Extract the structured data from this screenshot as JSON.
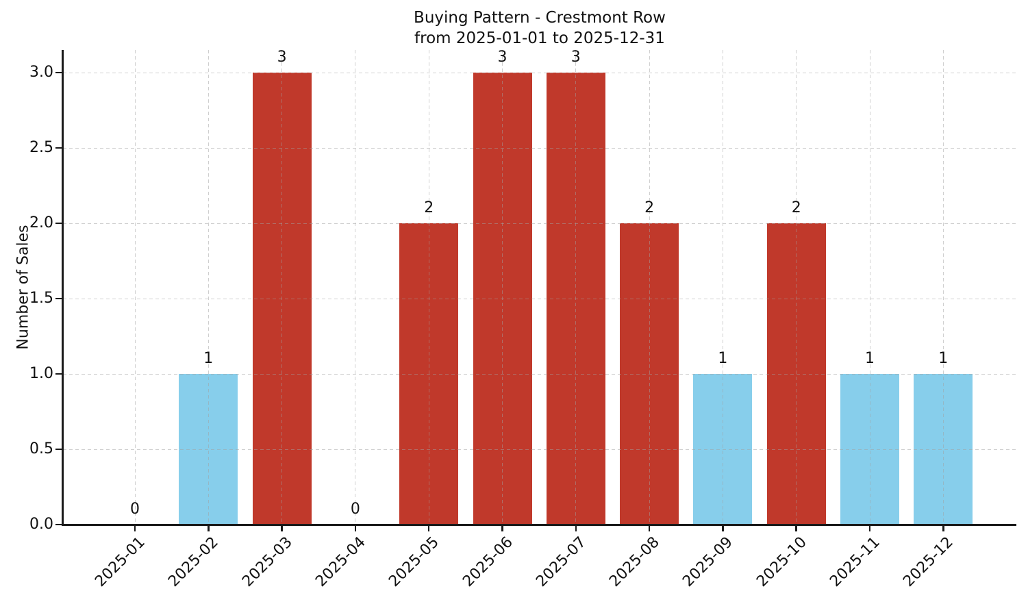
{
  "figure": {
    "title_line1": "Buying Pattern - Crestmont Row",
    "title_line2": "from 2025-01-01 to 2025-12-31"
  },
  "chart_data": {
    "type": "bar",
    "title": "Buying Pattern - Crestmont Row\nfrom 2025-01-01 to 2025-12-31",
    "xlabel": "",
    "ylabel": "Number of Sales",
    "categories": [
      "2025-01",
      "2025-02",
      "2025-03",
      "2025-04",
      "2025-05",
      "2025-06",
      "2025-07",
      "2025-08",
      "2025-09",
      "2025-10",
      "2025-11",
      "2025-12"
    ],
    "values": [
      0,
      1,
      3,
      0,
      2,
      3,
      3,
      2,
      1,
      2,
      1,
      1
    ],
    "bar_labels": [
      "0",
      "1",
      "3",
      "0",
      "2",
      "3",
      "3",
      "2",
      "1",
      "2",
      "1",
      "1"
    ],
    "bar_colors": [
      null,
      "#87ceeb",
      "#c0392b",
      null,
      "#c0392b",
      "#c0392b",
      "#c0392b",
      "#c0392b",
      "#87ceeb",
      "#c0392b",
      "#87ceeb",
      "#87ceeb"
    ],
    "palette": {
      "high_sales": "#c0392b",
      "low_sales": "#87ceeb"
    },
    "ylim": [
      0,
      3.15
    ],
    "yticks": [
      "0.0",
      "0.5",
      "1.0",
      "1.5",
      "2.0",
      "2.5",
      "3.0"
    ],
    "grid": {
      "shown": true,
      "style": "dashed",
      "axisbelow": false
    },
    "legend": "none"
  }
}
